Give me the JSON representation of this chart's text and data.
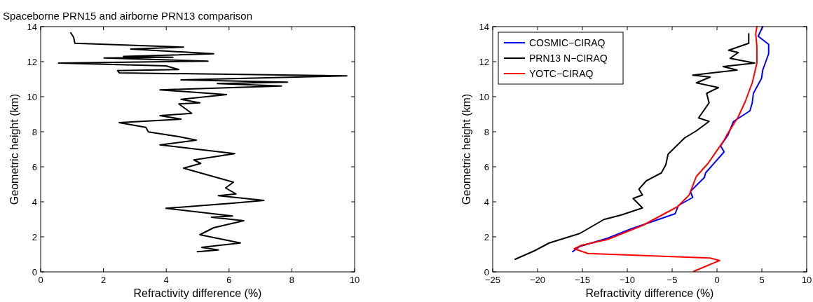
{
  "chart_data": [
    {
      "type": "line",
      "title": "Spaceborne PRN15 and airborne PRN13 comparison",
      "xlabel": "Refractivity difference (%)",
      "ylabel": "Geometric height (km)",
      "xlim": [
        0,
        10
      ],
      "ylim": [
        0,
        14
      ],
      "xticks": [
        0,
        2,
        4,
        6,
        8,
        10
      ],
      "yticks": [
        0,
        2,
        4,
        6,
        8,
        10,
        12,
        14
      ],
      "grid": false,
      "legend": false,
      "series": [
        {
          "color": "#000000",
          "x": [
            4.99,
            5.66,
            5.13,
            6.36,
            5.07,
            5.51,
            6.47,
            5.44,
            6.11,
            3.99,
            6.11,
            7.11,
            5.66,
            6.22,
            5.89,
            6.14,
            4.55,
            5.1,
            4.88,
            6.18,
            3.8,
            4.96,
            4.4,
            3.43,
            3.35,
            2.5,
            4.47,
            3.8,
            4.81,
            4.4,
            5.07,
            4.47,
            5.92,
            3.8,
            7.67,
            5.63,
            7.86,
            4.47,
            9.75,
            2.5,
            2.45,
            4.4,
            3.99,
            0.57,
            5.33,
            2.02,
            4.21,
            2.64,
            5.51,
            2.87,
            4.55,
            1.09,
            1.05,
            0.96
          ],
          "values": [
            1.15,
            1.25,
            1.4,
            1.65,
            2.12,
            2.52,
            2.92,
            3.12,
            3.19,
            3.63,
            3.92,
            4.08,
            4.35,
            4.45,
            4.79,
            5.12,
            5.92,
            6.19,
            6.39,
            6.75,
            7.25,
            7.52,
            7.72,
            7.99,
            8.25,
            8.52,
            8.72,
            8.92,
            9.05,
            9.59,
            9.65,
            9.85,
            10.12,
            10.39,
            10.61,
            10.75,
            10.83,
            10.96,
            11.19,
            11.36,
            11.49,
            11.55,
            11.76,
            11.92,
            12.03,
            12.21,
            12.25,
            12.3,
            12.45,
            12.72,
            12.83,
            13.05,
            13.39,
            13.65
          ]
        }
      ]
    },
    {
      "type": "line",
      "xlabel": "Refractivity difference (%)",
      "ylabel": "Geometric height (km)",
      "xlim": [
        -25,
        10
      ],
      "ylim": [
        0,
        14
      ],
      "xticks": [
        -25,
        -20,
        -15,
        -10,
        -5,
        0,
        5,
        10
      ],
      "yticks": [
        0,
        2,
        4,
        6,
        8,
        10,
        12,
        14
      ],
      "grid": false,
      "legend": "top left",
      "series": [
        {
          "name": "COSMIC−CIRAQ",
          "color": "#0000ff",
          "x": [
            -16.1,
            -15.3,
            -12.2,
            -9.6,
            -4.66,
            -4.3,
            -2.7,
            -2.97,
            -1.4,
            -1.27,
            0.8,
            0.4,
            1.2,
            1.85,
            3.67,
            3.93,
            4.06,
            4.97,
            5.1,
            5.76,
            5.76,
            4.59,
            5.1
          ],
          "values": [
            1.15,
            1.45,
            1.92,
            2.45,
            3.32,
            3.79,
            4.25,
            4.59,
            5.39,
            5.65,
            6.85,
            7.19,
            7.79,
            8.59,
            9.19,
            9.65,
            10.19,
            11.05,
            11.52,
            12.45,
            12.99,
            13.45,
            14
          ]
        },
        {
          "name": "PRN13 N−CIRAQ",
          "color": "#000000",
          "x": [
            -22.5,
            -20.4,
            -18.7,
            -15.3,
            -12.6,
            -10.65,
            -8.3,
            -9.35,
            -8.3,
            -8.7,
            -7.9,
            -6.2,
            -5.7,
            -5.45,
            -3.6,
            -2.3,
            -0.88,
            -2.05,
            -0.88,
            -1.15,
            0.16,
            -2.3,
            -0.76,
            -2.7,
            2.24,
            0.68,
            4.2,
            1.46,
            2.37,
            1.3,
            3.54,
            3.54
          ],
          "values": [
            0.72,
            1.19,
            1.65,
            2.19,
            2.99,
            3.25,
            3.65,
            4.19,
            4.39,
            4.72,
            5.19,
            5.65,
            6.12,
            6.72,
            7.65,
            8.05,
            8.59,
            8.79,
            9.65,
            10.19,
            10.52,
            10.79,
            11.12,
            11.23,
            11.52,
            11.72,
            11.92,
            12.19,
            12.52,
            12.65,
            13.05,
            13.59
          ]
        },
        {
          "name": "YOTC−CIRAQ",
          "color": "#ff0000",
          "x": [
            -2.58,
            0.29,
            -0.76,
            -14.4,
            -15.9,
            -15.1,
            -12.2,
            -8.3,
            -4.4,
            -3.1,
            -2.3,
            -1.0,
            0.8,
            1.07,
            2.37,
            3.15,
            3.93,
            4.45,
            4.45,
            4.32,
            4.45
          ],
          "values": [
            0.03,
            0.65,
            0.79,
            1.05,
            1.32,
            1.52,
            1.85,
            2.65,
            3.72,
            4.39,
            5.45,
            6.19,
            7.52,
            7.79,
            8.85,
            9.72,
            10.79,
            11.92,
            12.85,
            13.59,
            14
          ]
        }
      ]
    }
  ]
}
